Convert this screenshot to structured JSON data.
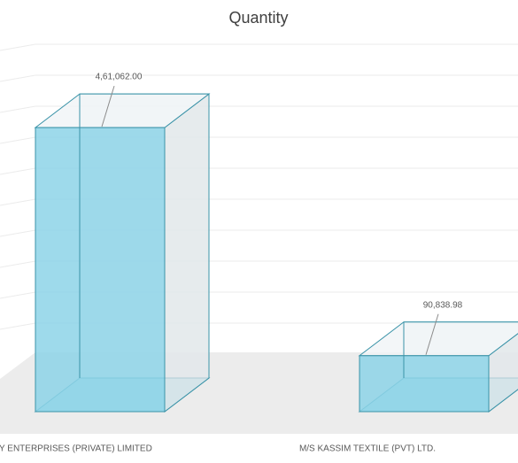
{
  "chart_data": {
    "type": "bar",
    "title": "Quantity",
    "categories": [
      "Y ENTERPRISES (PRIVATE) LIMITED",
      "M/S KASSIM TEXTILE (PVT) LTD."
    ],
    "values": [
      461062,
      90838.98
    ],
    "value_labels": [
      "4,61,062.00",
      "90,838.98"
    ],
    "color": "#8dd3e7",
    "ylim": [
      0,
      500000
    ]
  }
}
